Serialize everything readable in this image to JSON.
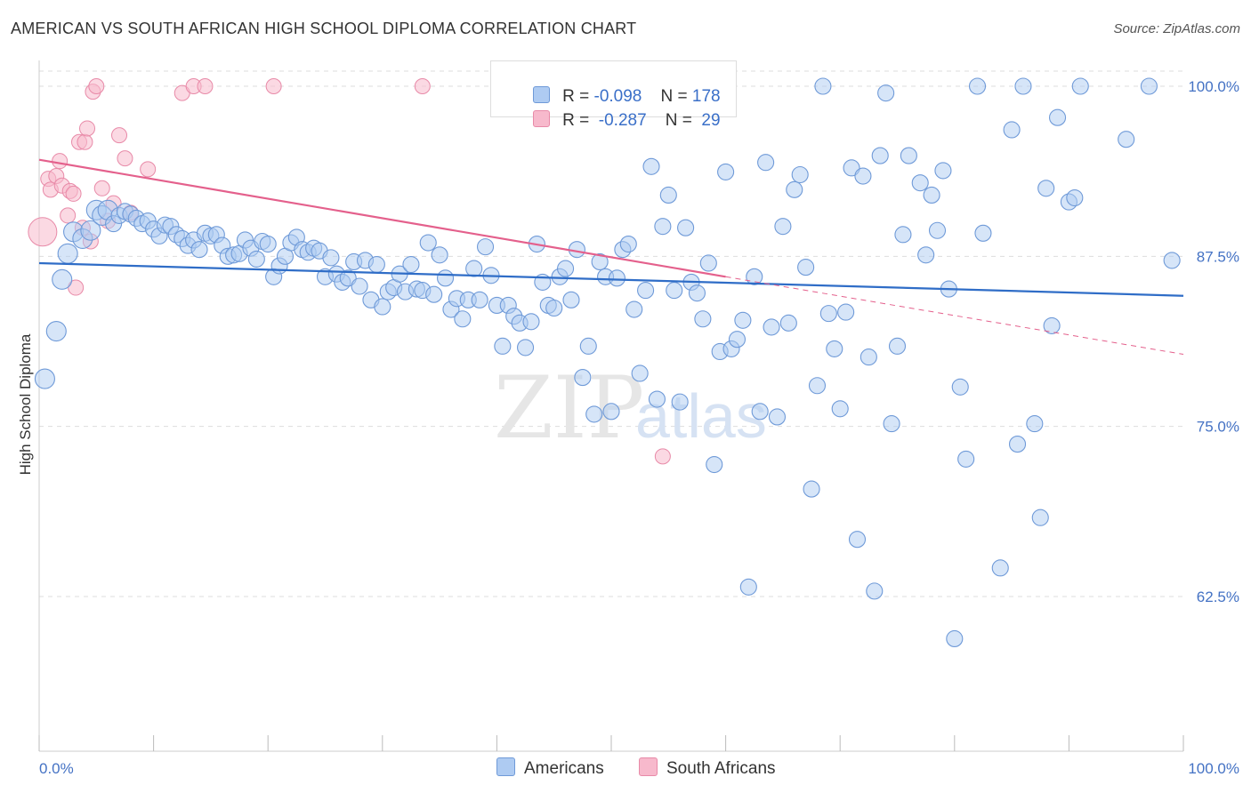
{
  "title": "AMERICAN VS SOUTH AFRICAN HIGH SCHOOL DIPLOMA CORRELATION CHART",
  "source": "Source: ZipAtlas.com",
  "watermark": {
    "zip": "ZIP",
    "atlas": "atlas"
  },
  "legend": {
    "rows": [
      {
        "r_label": "R = ",
        "r_value": "-0.098",
        "n_label": "N = ",
        "n_value": "178"
      },
      {
        "r_label": "R = ",
        "r_value": " -0.287",
        "n_label": "N = ",
        "n_value": " 29"
      }
    ],
    "bottom": [
      "Americans",
      "South Africans"
    ]
  },
  "colors": {
    "americans_fill": "#aecbf2",
    "americans_stroke": "#6f9ad8",
    "americans_line": "#2f6dc7",
    "south_africans_fill": "#f7b9cc",
    "south_africans_stroke": "#e88aa8",
    "south_africans_line": "#e4608c",
    "tick_label": "#4472c4",
    "grid": "#dddddd"
  },
  "chart_data": {
    "type": "scatter",
    "ylabel": "High School Diploma",
    "xlim": [
      0,
      100
    ],
    "ylim": [
      50,
      102
    ],
    "x_tick_labels": [
      "0.0%",
      "100.0%"
    ],
    "y_ticks": [
      100,
      87.5,
      75,
      62.5
    ],
    "y_tick_labels": [
      "100.0%",
      "87.5%",
      "75.0%",
      "62.5%"
    ],
    "grid": true,
    "series": [
      {
        "name": "Americans",
        "trend": {
          "x0": 0,
          "y0": 87.0,
          "x1": 100,
          "y1": 84.6
        },
        "points": [
          [
            0.5,
            78.5
          ],
          [
            1.5,
            82.0
          ],
          [
            2,
            85.8
          ],
          [
            2.5,
            87.7
          ],
          [
            3,
            89.3
          ],
          [
            3.8,
            88.8
          ],
          [
            4.5,
            89.4
          ],
          [
            5,
            90.9
          ],
          [
            5.5,
            90.5
          ],
          [
            6,
            90.9
          ],
          [
            6.5,
            89.9
          ],
          [
            7,
            90.5
          ],
          [
            7.5,
            90.8
          ],
          [
            8,
            90.6
          ],
          [
            8.5,
            90.3
          ],
          [
            9,
            89.9
          ],
          [
            9.5,
            90.1
          ],
          [
            10,
            89.5
          ],
          [
            10.5,
            89.0
          ],
          [
            11,
            89.8
          ],
          [
            11.5,
            89.7
          ],
          [
            12,
            89.1
          ],
          [
            12.5,
            88.8
          ],
          [
            13,
            88.3
          ],
          [
            13.5,
            88.7
          ],
          [
            14,
            88.0
          ],
          [
            14.5,
            89.2
          ],
          [
            15,
            89.0
          ],
          [
            15.5,
            89.1
          ],
          [
            16,
            88.3
          ],
          [
            16.5,
            87.5
          ],
          [
            17,
            87.6
          ],
          [
            17.5,
            87.7
          ],
          [
            18,
            88.7
          ],
          [
            18.5,
            88.1
          ],
          [
            19,
            87.3
          ],
          [
            19.5,
            88.6
          ],
          [
            20,
            88.4
          ],
          [
            20.5,
            86.0
          ],
          [
            21,
            86.8
          ],
          [
            21.5,
            87.5
          ],
          [
            22,
            88.5
          ],
          [
            22.5,
            88.9
          ],
          [
            23,
            88.0
          ],
          [
            23.5,
            87.8
          ],
          [
            24,
            88.1
          ],
          [
            24.5,
            87.9
          ],
          [
            25,
            86.0
          ],
          [
            25.5,
            87.4
          ],
          [
            26,
            86.2
          ],
          [
            26.5,
            85.6
          ],
          [
            27,
            85.9
          ],
          [
            27.5,
            87.1
          ],
          [
            28,
            85.3
          ],
          [
            28.5,
            87.2
          ],
          [
            29,
            84.3
          ],
          [
            29.5,
            86.9
          ],
          [
            30,
            83.8
          ],
          [
            30.5,
            84.9
          ],
          [
            31,
            85.2
          ],
          [
            31.5,
            86.2
          ],
          [
            32,
            84.9
          ],
          [
            32.5,
            86.9
          ],
          [
            33,
            85.1
          ],
          [
            33.5,
            85.0
          ],
          [
            34,
            88.5
          ],
          [
            34.5,
            84.7
          ],
          [
            35,
            87.6
          ],
          [
            35.5,
            85.9
          ],
          [
            36,
            83.6
          ],
          [
            36.5,
            84.4
          ],
          [
            37,
            82.9
          ],
          [
            37.5,
            84.3
          ],
          [
            38,
            86.6
          ],
          [
            38.5,
            84.3
          ],
          [
            39,
            88.2
          ],
          [
            39.5,
            86.1
          ],
          [
            40,
            83.9
          ],
          [
            40.5,
            80.9
          ],
          [
            41,
            83.9
          ],
          [
            41.5,
            83.1
          ],
          [
            42,
            82.6
          ],
          [
            42.5,
            80.8
          ],
          [
            43,
            82.7
          ],
          [
            43.5,
            88.4
          ],
          [
            44,
            85.6
          ],
          [
            44.5,
            83.9
          ],
          [
            45,
            83.7
          ],
          [
            45.5,
            86.0
          ],
          [
            46,
            86.6
          ],
          [
            46.5,
            84.3
          ],
          [
            47,
            88.0
          ],
          [
            47.5,
            78.6
          ],
          [
            48,
            80.9
          ],
          [
            48.5,
            75.9
          ],
          [
            49,
            87.1
          ],
          [
            49.5,
            86.0
          ],
          [
            50,
            76.1
          ],
          [
            50.5,
            85.9
          ],
          [
            51,
            88.0
          ],
          [
            51.5,
            88.4
          ],
          [
            52,
            83.6
          ],
          [
            52.5,
            78.9
          ],
          [
            53,
            85.0
          ],
          [
            53.5,
            94.1
          ],
          [
            54,
            77.0
          ],
          [
            54.5,
            89.7
          ],
          [
            55,
            92.0
          ],
          [
            55.5,
            85.0
          ],
          [
            56,
            76.8
          ],
          [
            56.5,
            89.6
          ],
          [
            57,
            85.6
          ],
          [
            57.5,
            84.8
          ],
          [
            58,
            82.9
          ],
          [
            58.5,
            87.0
          ],
          [
            59,
            72.2
          ],
          [
            59.5,
            80.5
          ],
          [
            60,
            93.7
          ],
          [
            60.5,
            80.7
          ],
          [
            61,
            81.4
          ],
          [
            61.5,
            82.8
          ],
          [
            62,
            63.2
          ],
          [
            62.5,
            86.0
          ],
          [
            63,
            76.1
          ],
          [
            63.5,
            94.4
          ],
          [
            64,
            82.3
          ],
          [
            64.5,
            75.7
          ],
          [
            65,
            89.7
          ],
          [
            65.5,
            82.6
          ],
          [
            66,
            92.4
          ],
          [
            66.5,
            93.5
          ],
          [
            67,
            86.7
          ],
          [
            67.5,
            70.4
          ],
          [
            68,
            78.0
          ],
          [
            68.5,
            100.0
          ],
          [
            69,
            83.3
          ],
          [
            69.5,
            80.7
          ],
          [
            70,
            76.3
          ],
          [
            70.5,
            83.4
          ],
          [
            71,
            94.0
          ],
          [
            71.5,
            66.7
          ],
          [
            72,
            93.4
          ],
          [
            72.5,
            80.1
          ],
          [
            73,
            62.9
          ],
          [
            73.5,
            94.9
          ],
          [
            74,
            99.5
          ],
          [
            74.5,
            75.2
          ],
          [
            75,
            80.9
          ],
          [
            75.5,
            89.1
          ],
          [
            76,
            94.9
          ],
          [
            77,
            92.9
          ],
          [
            77.5,
            87.6
          ],
          [
            78,
            92.0
          ],
          [
            78.5,
            89.4
          ],
          [
            79,
            93.8
          ],
          [
            79.5,
            85.1
          ],
          [
            80,
            59.4
          ],
          [
            80.5,
            77.9
          ],
          [
            81,
            72.6
          ],
          [
            82,
            100.0
          ],
          [
            82.5,
            89.2
          ],
          [
            84,
            64.6
          ],
          [
            85,
            96.8
          ],
          [
            85.5,
            73.7
          ],
          [
            86,
            100.0
          ],
          [
            87,
            75.2
          ],
          [
            87.5,
            68.3
          ],
          [
            88,
            92.5
          ],
          [
            88.5,
            82.4
          ],
          [
            89,
            97.7
          ],
          [
            90,
            91.5
          ],
          [
            90.5,
            91.8
          ],
          [
            91,
            100.0
          ],
          [
            95,
            96.1
          ],
          [
            97,
            100.0
          ],
          [
            99,
            87.2
          ]
        ]
      },
      {
        "name": "South Africans",
        "trend": {
          "x0": 0,
          "y0": 94.6,
          "x1": 60,
          "y1": 86.0,
          "dash_x1": 100,
          "dash_y1": 80.3
        },
        "points": [
          [
            0.3,
            89.3
          ],
          [
            0.8,
            93.2
          ],
          [
            1.0,
            92.4
          ],
          [
            1.5,
            93.4
          ],
          [
            1.8,
            94.5
          ],
          [
            2.0,
            92.7
          ],
          [
            2.5,
            90.5
          ],
          [
            2.7,
            92.3
          ],
          [
            3.0,
            92.1
          ],
          [
            3.2,
            85.2
          ],
          [
            3.5,
            95.9
          ],
          [
            3.8,
            89.6
          ],
          [
            4.0,
            95.9
          ],
          [
            4.2,
            96.9
          ],
          [
            4.5,
            88.6
          ],
          [
            4.7,
            99.6
          ],
          [
            5.0,
            100.0
          ],
          [
            5.5,
            92.5
          ],
          [
            6.0,
            90.1
          ],
          [
            6.5,
            91.4
          ],
          [
            7.0,
            96.4
          ],
          [
            7.5,
            94.7
          ],
          [
            8.0,
            90.7
          ],
          [
            9.5,
            93.9
          ],
          [
            12.5,
            99.5
          ],
          [
            13.5,
            100.0
          ],
          [
            14.5,
            100.0
          ],
          [
            20.5,
            100.0
          ],
          [
            33.5,
            100.0
          ],
          [
            54.5,
            72.8
          ]
        ]
      }
    ]
  }
}
